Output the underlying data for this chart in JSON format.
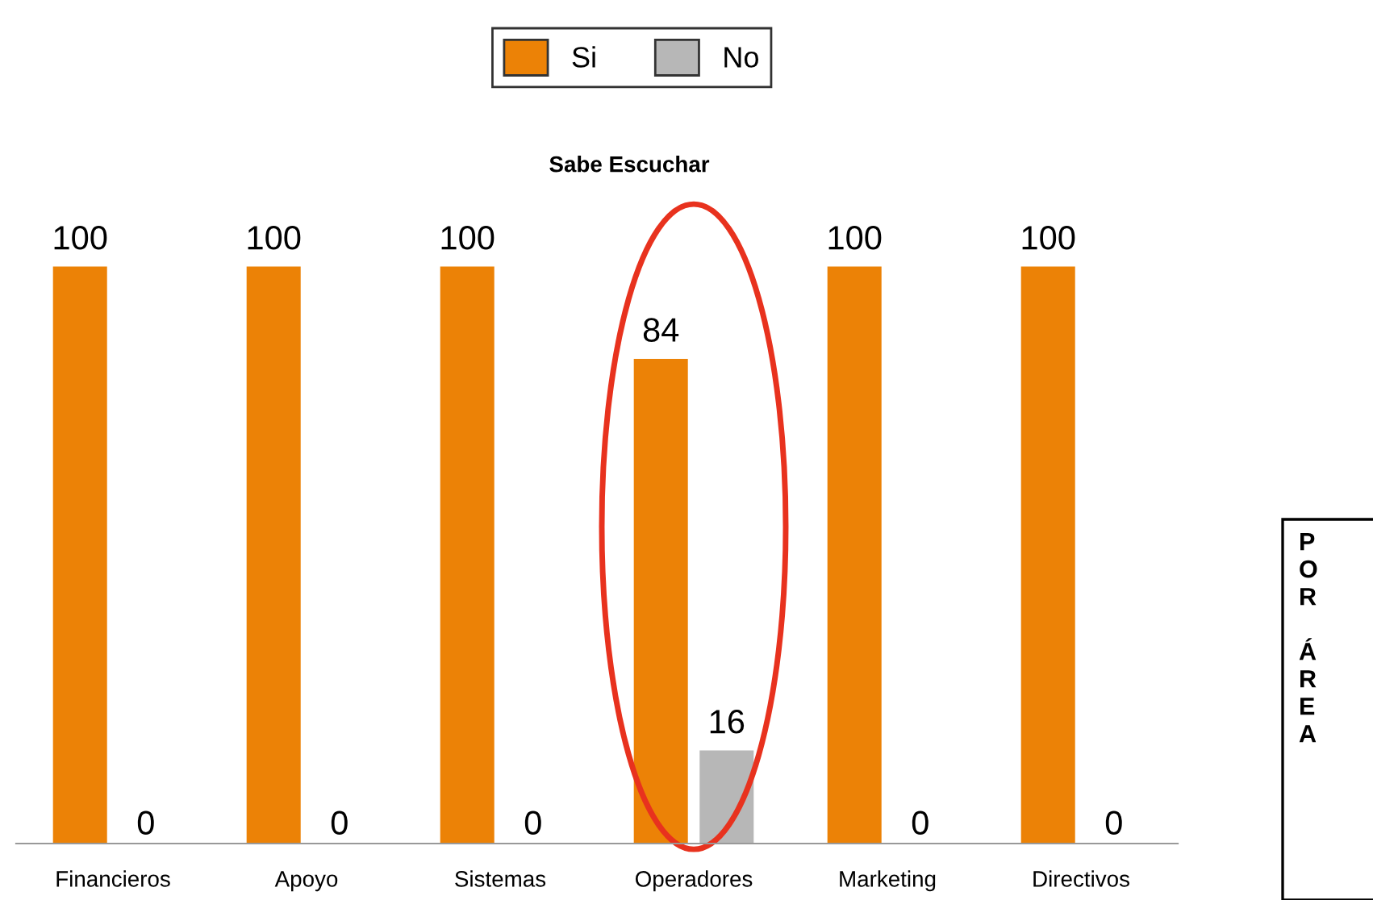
{
  "chart_data": {
    "type": "bar",
    "title": "Sabe Escuchar",
    "categories": [
      "Financieros",
      "Apoyo",
      "Sistemas",
      "Operadores",
      "Marketing",
      "Directivos"
    ],
    "series": [
      {
        "name": "Si",
        "color": "#ec8206",
        "values": [
          100,
          100,
          100,
          84,
          100,
          100
        ]
      },
      {
        "name": "No",
        "color": "#b7b7b7",
        "values": [
          0,
          0,
          0,
          16,
          0,
          0
        ]
      }
    ],
    "data_labels": true,
    "legend": "top",
    "grid": false,
    "annotations": [
      "POR ÁREA"
    ]
  }
}
